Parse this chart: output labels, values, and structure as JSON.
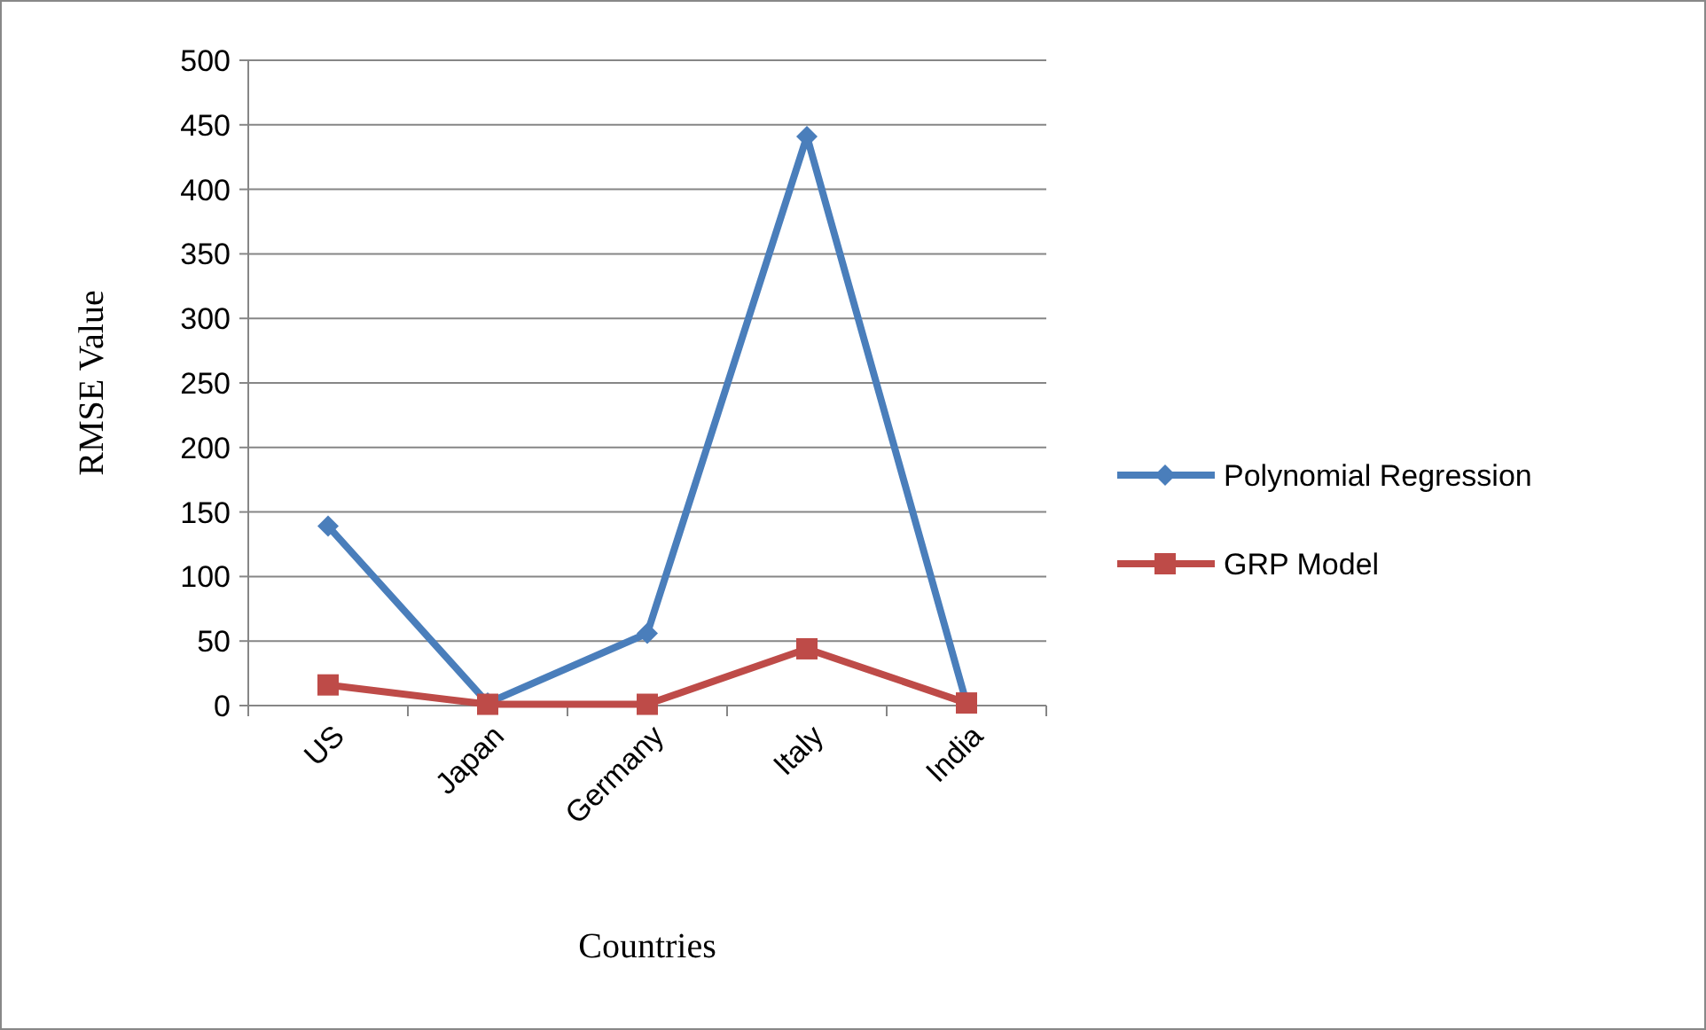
{
  "chart_data": {
    "type": "line",
    "xlabel": "Countries",
    "ylabel": "RMSE Value",
    "categories": [
      "US",
      "Japan",
      "Germany",
      "Italy",
      "India"
    ],
    "series": [
      {
        "name": "Polynomial Regression",
        "color": "#4a7ebb",
        "values": [
          139,
          2,
          56,
          441,
          2
        ],
        "marker": "diamond"
      },
      {
        "name": "GRP Model",
        "color": "#be4b48",
        "values": [
          16,
          1,
          1,
          44,
          2
        ],
        "marker": "square"
      }
    ],
    "ylim": [
      0,
      500
    ],
    "yticks": [
      0,
      50,
      100,
      150,
      200,
      250,
      300,
      350,
      400,
      450,
      500
    ],
    "grid": "y",
    "legend": "right"
  }
}
